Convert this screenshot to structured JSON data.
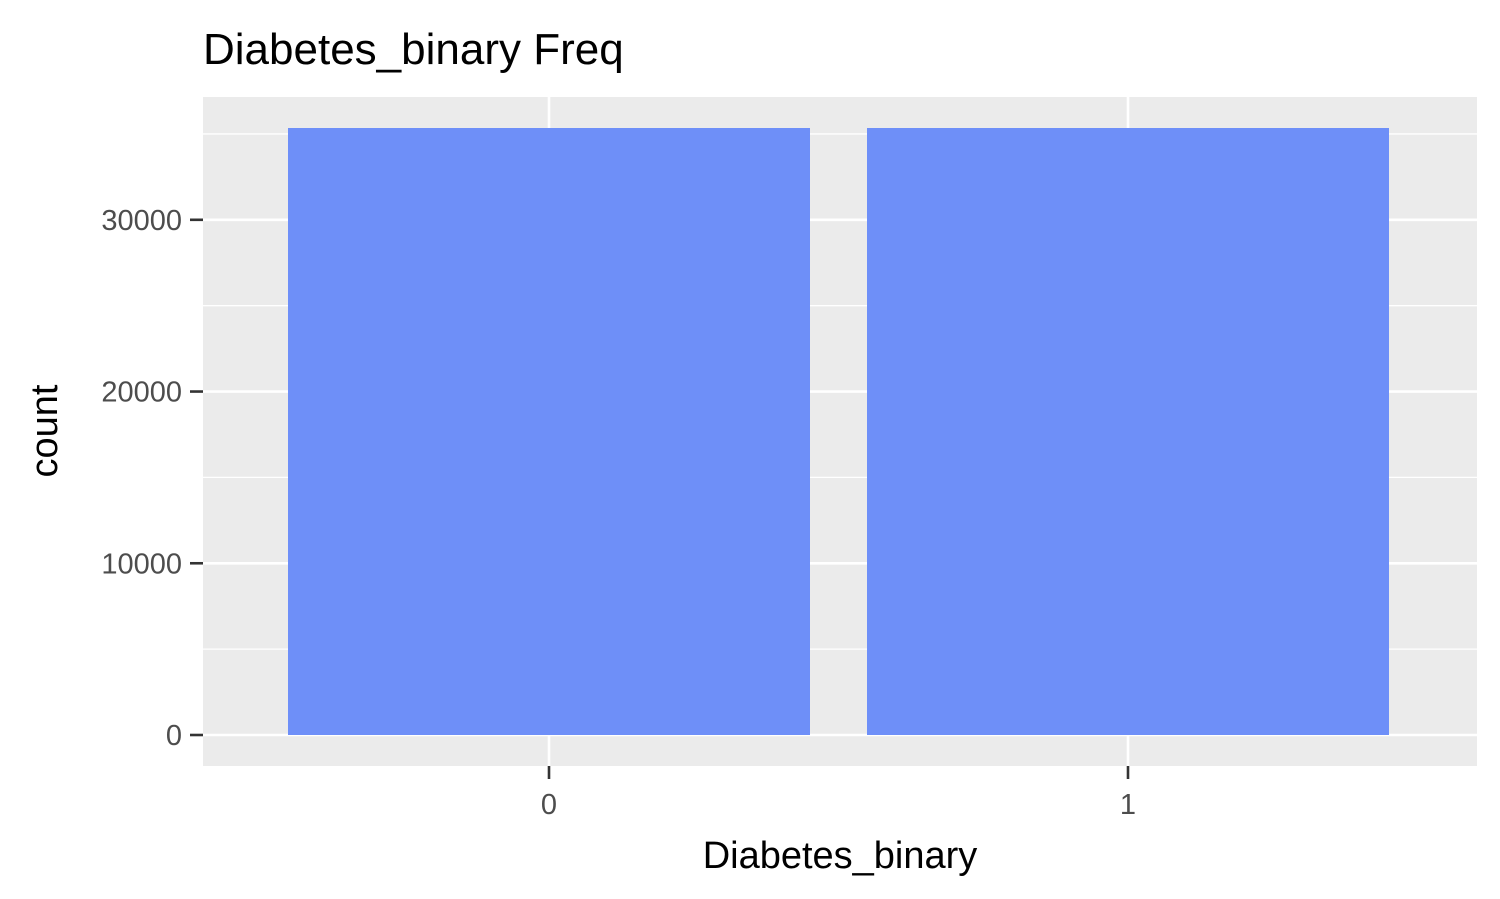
{
  "chart_data": {
    "type": "bar",
    "title": "Diabetes_binary Freq",
    "xlabel": "Diabetes_binary",
    "ylabel": "count",
    "categories": [
      "0",
      "1"
    ],
    "values": [
      35346,
      35346
    ],
    "ylim": [
      0,
      35346
    ],
    "y_ticks": [
      0,
      10000,
      20000,
      30000
    ],
    "grid": true,
    "legend": "none",
    "colors": {
      "bar": "#6e8ff8",
      "panel": "#ebebeb",
      "grid": "#ffffff",
      "tick": "#333333"
    }
  }
}
